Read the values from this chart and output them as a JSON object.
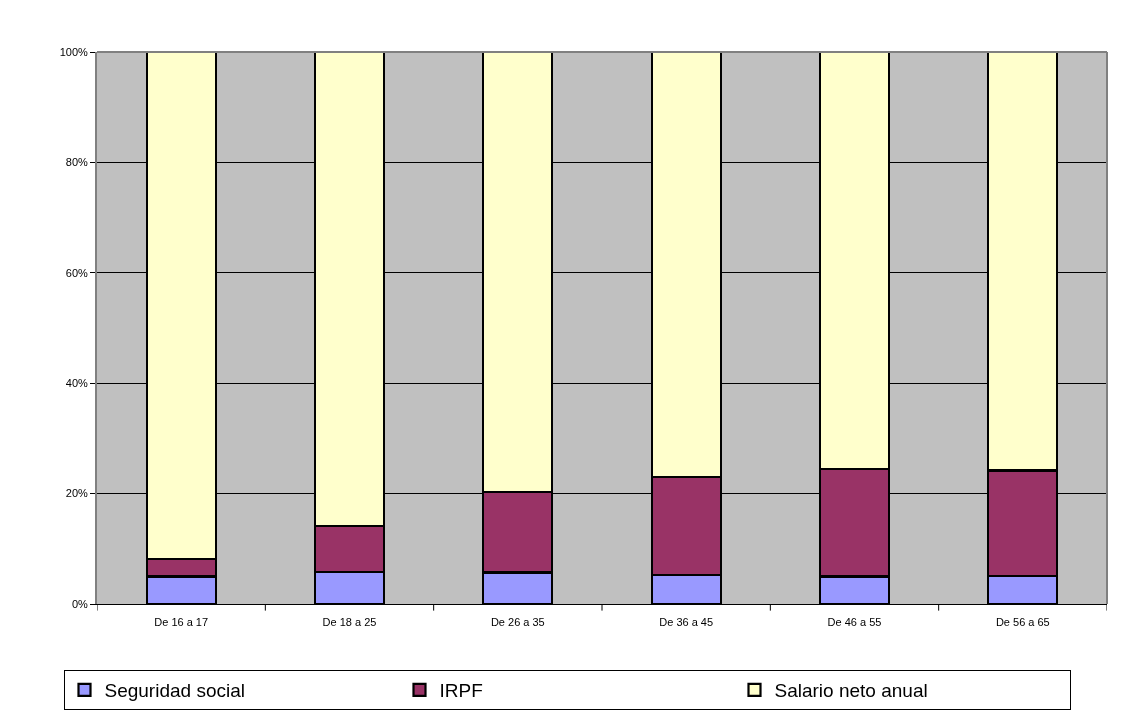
{
  "chart_data": {
    "type": "bar",
    "stacked": true,
    "categories": [
      "De 16 a 17",
      "De 18 a 25",
      "De 26 a 35",
      "De 36 a 45",
      "De 46 a 55",
      "De 56 a 65"
    ],
    "series": [
      {
        "name": "Seguridad social",
        "color": "#9999ff",
        "values": [
          5.0,
          5.8,
          5.7,
          5.2,
          5.0,
          5.1
        ]
      },
      {
        "name": "IRPF",
        "color": "#993366",
        "values": [
          3.2,
          8.3,
          14.6,
          17.8,
          19.5,
          19.1
        ]
      },
      {
        "name": "Salario neto anual",
        "color": "#ffffcc",
        "values": [
          91.8,
          85.9,
          79.7,
          77.0,
          75.5,
          75.8
        ]
      }
    ],
    "ylim": [
      0,
      100
    ],
    "yticks": [
      {
        "value": 0,
        "label": "0%"
      },
      {
        "value": 20,
        "label": "20%"
      },
      {
        "value": 40,
        "label": "40%"
      },
      {
        "value": 60,
        "label": "60%"
      },
      {
        "value": 80,
        "label": "80%"
      },
      {
        "value": 100,
        "label": "100%"
      }
    ],
    "grid": "y",
    "legend": "bottom"
  }
}
